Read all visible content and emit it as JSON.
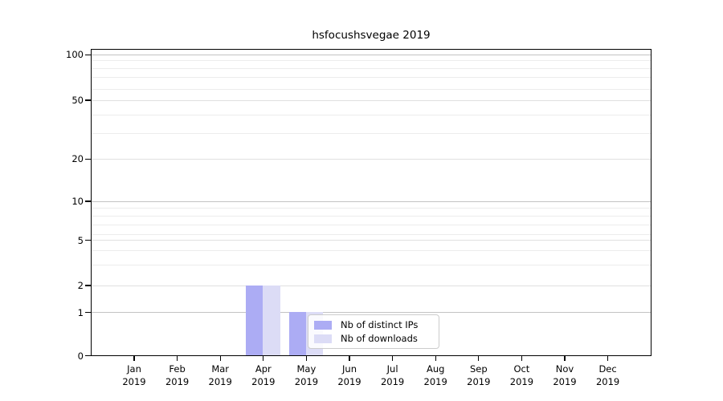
{
  "chart_data": {
    "type": "bar",
    "title": "hsfocushsvegae 2019",
    "categories": [
      "Jan",
      "Feb",
      "Mar",
      "Apr",
      "May",
      "Jun",
      "Jul",
      "Aug",
      "Sep",
      "Oct",
      "Nov",
      "Dec"
    ],
    "x_tick_year": "2019",
    "series": [
      {
        "name": "Nb of distinct IPs",
        "color": "#acacf4",
        "values": [
          0,
          0,
          0,
          2,
          1,
          0,
          0,
          0,
          0,
          0,
          0,
          0
        ]
      },
      {
        "name": "Nb of downloads",
        "color": "#dcdcf6",
        "values": [
          0,
          0,
          0,
          2,
          1,
          0,
          0,
          0,
          0,
          0,
          0,
          0
        ]
      }
    ],
    "ylim": [
      0,
      110
    ],
    "yscale": "log-like with linear segment to 0",
    "y_tick_labels": [
      "0",
      "1",
      "2",
      "5",
      "10",
      "20",
      "50",
      "100"
    ],
    "y_minor_gridlines": [
      3,
      4,
      6,
      7,
      8,
      9,
      30,
      40,
      60,
      70,
      80,
      90
    ],
    "grid": "horizontal only",
    "legend_position": "inside plot, lower center-right",
    "bar_layout": "grouped, side-by-side pairs centered on month tick"
  }
}
